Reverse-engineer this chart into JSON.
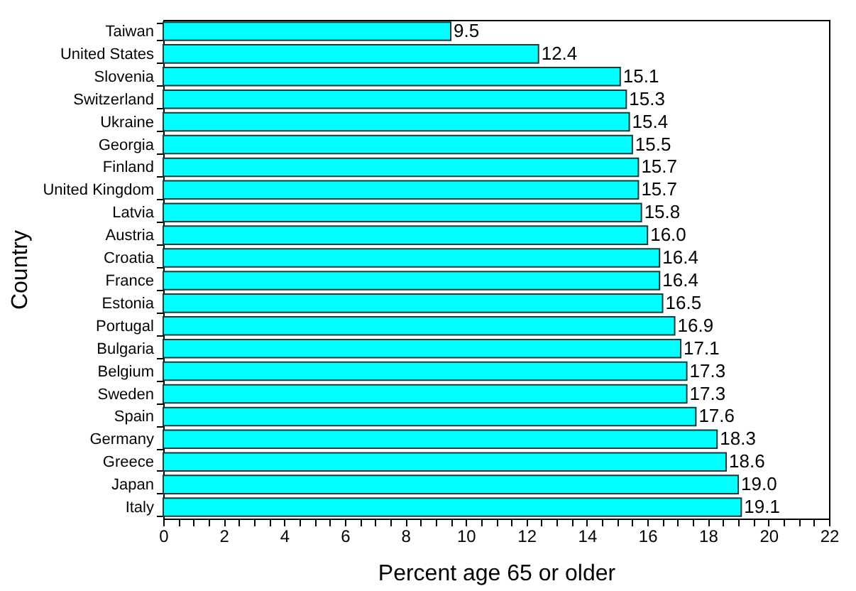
{
  "chart_data": {
    "type": "bar",
    "orientation": "horizontal",
    "xlabel": "Percent age 65 or older",
    "ylabel": "Country",
    "categories": [
      "Taiwan",
      "United States",
      "Slovenia",
      "Switzerland",
      "Ukraine",
      "Georgia",
      "Finland",
      "United Kingdom",
      "Latvia",
      "Austria",
      "Croatia",
      "France",
      "Estonia",
      "Portugal",
      "Bulgaria",
      "Belgium",
      "Sweden",
      "Spain",
      "Germany",
      "Greece",
      "Japan",
      "Italy"
    ],
    "values": [
      9.5,
      12.4,
      15.1,
      15.3,
      15.4,
      15.5,
      15.7,
      15.7,
      15.8,
      16.0,
      16.4,
      16.4,
      16.5,
      16.9,
      17.1,
      17.3,
      17.3,
      17.6,
      18.3,
      18.6,
      19.0,
      19.1
    ],
    "value_labels": [
      "9.5",
      "12.4",
      "15.1",
      "15.3",
      "15.4",
      "15.5",
      "15.7",
      "15.7",
      "15.8",
      "16.0",
      "16.4",
      "16.4",
      "16.5",
      "16.9",
      "17.1",
      "17.3",
      "17.3",
      "17.6",
      "18.3",
      "18.6",
      "19.0",
      "19.1"
    ],
    "color": "#00ffff",
    "xlim": [
      0,
      22
    ],
    "xticks": [
      0,
      {
        "value": 0.5,
        "label": null
      },
      {
        "value": 1,
        "label": null
      },
      {
        "value": 1.5,
        "label": null
      },
      2,
      {
        "value": 2.5,
        "label": null
      },
      {
        "value": 3,
        "label": null
      },
      {
        "value": 3.5,
        "label": null
      },
      4,
      {
        "value": 4.5,
        "label": null
      },
      {
        "value": 5,
        "label": null
      },
      {
        "value": 5.5,
        "label": null
      },
      6,
      {
        "value": 6.5,
        "label": null
      },
      {
        "value": 7,
        "label": null
      },
      {
        "value": 7.5,
        "label": null
      },
      8,
      {
        "value": 8.5,
        "label": null
      },
      {
        "value": 9,
        "label": null
      },
      {
        "value": 9.5,
        "label": null
      },
      10,
      {
        "value": 10.5,
        "label": null
      },
      {
        "value": 11,
        "label": null
      },
      {
        "value": 11.5,
        "label": null
      },
      12,
      {
        "value": 12.5,
        "label": null
      },
      {
        "value": 13,
        "label": null
      },
      {
        "value": 13.5,
        "label": null
      },
      14,
      {
        "value": 14.5,
        "label": null
      },
      {
        "value": 15,
        "label": null
      },
      {
        "value": 15.5,
        "label": null
      },
      16,
      {
        "value": 16.5,
        "label": null
      },
      {
        "value": 17,
        "label": null
      },
      {
        "value": 17.5,
        "label": null
      },
      18,
      {
        "value": 18.5,
        "label": null
      },
      {
        "value": 19,
        "label": null
      },
      {
        "value": 19.5,
        "label": null
      },
      20,
      {
        "value": 20.5,
        "label": null
      },
      {
        "value": 21,
        "label": null
      },
      {
        "value": 21.5,
        "label": null
      },
      22
    ],
    "grid": false
  }
}
